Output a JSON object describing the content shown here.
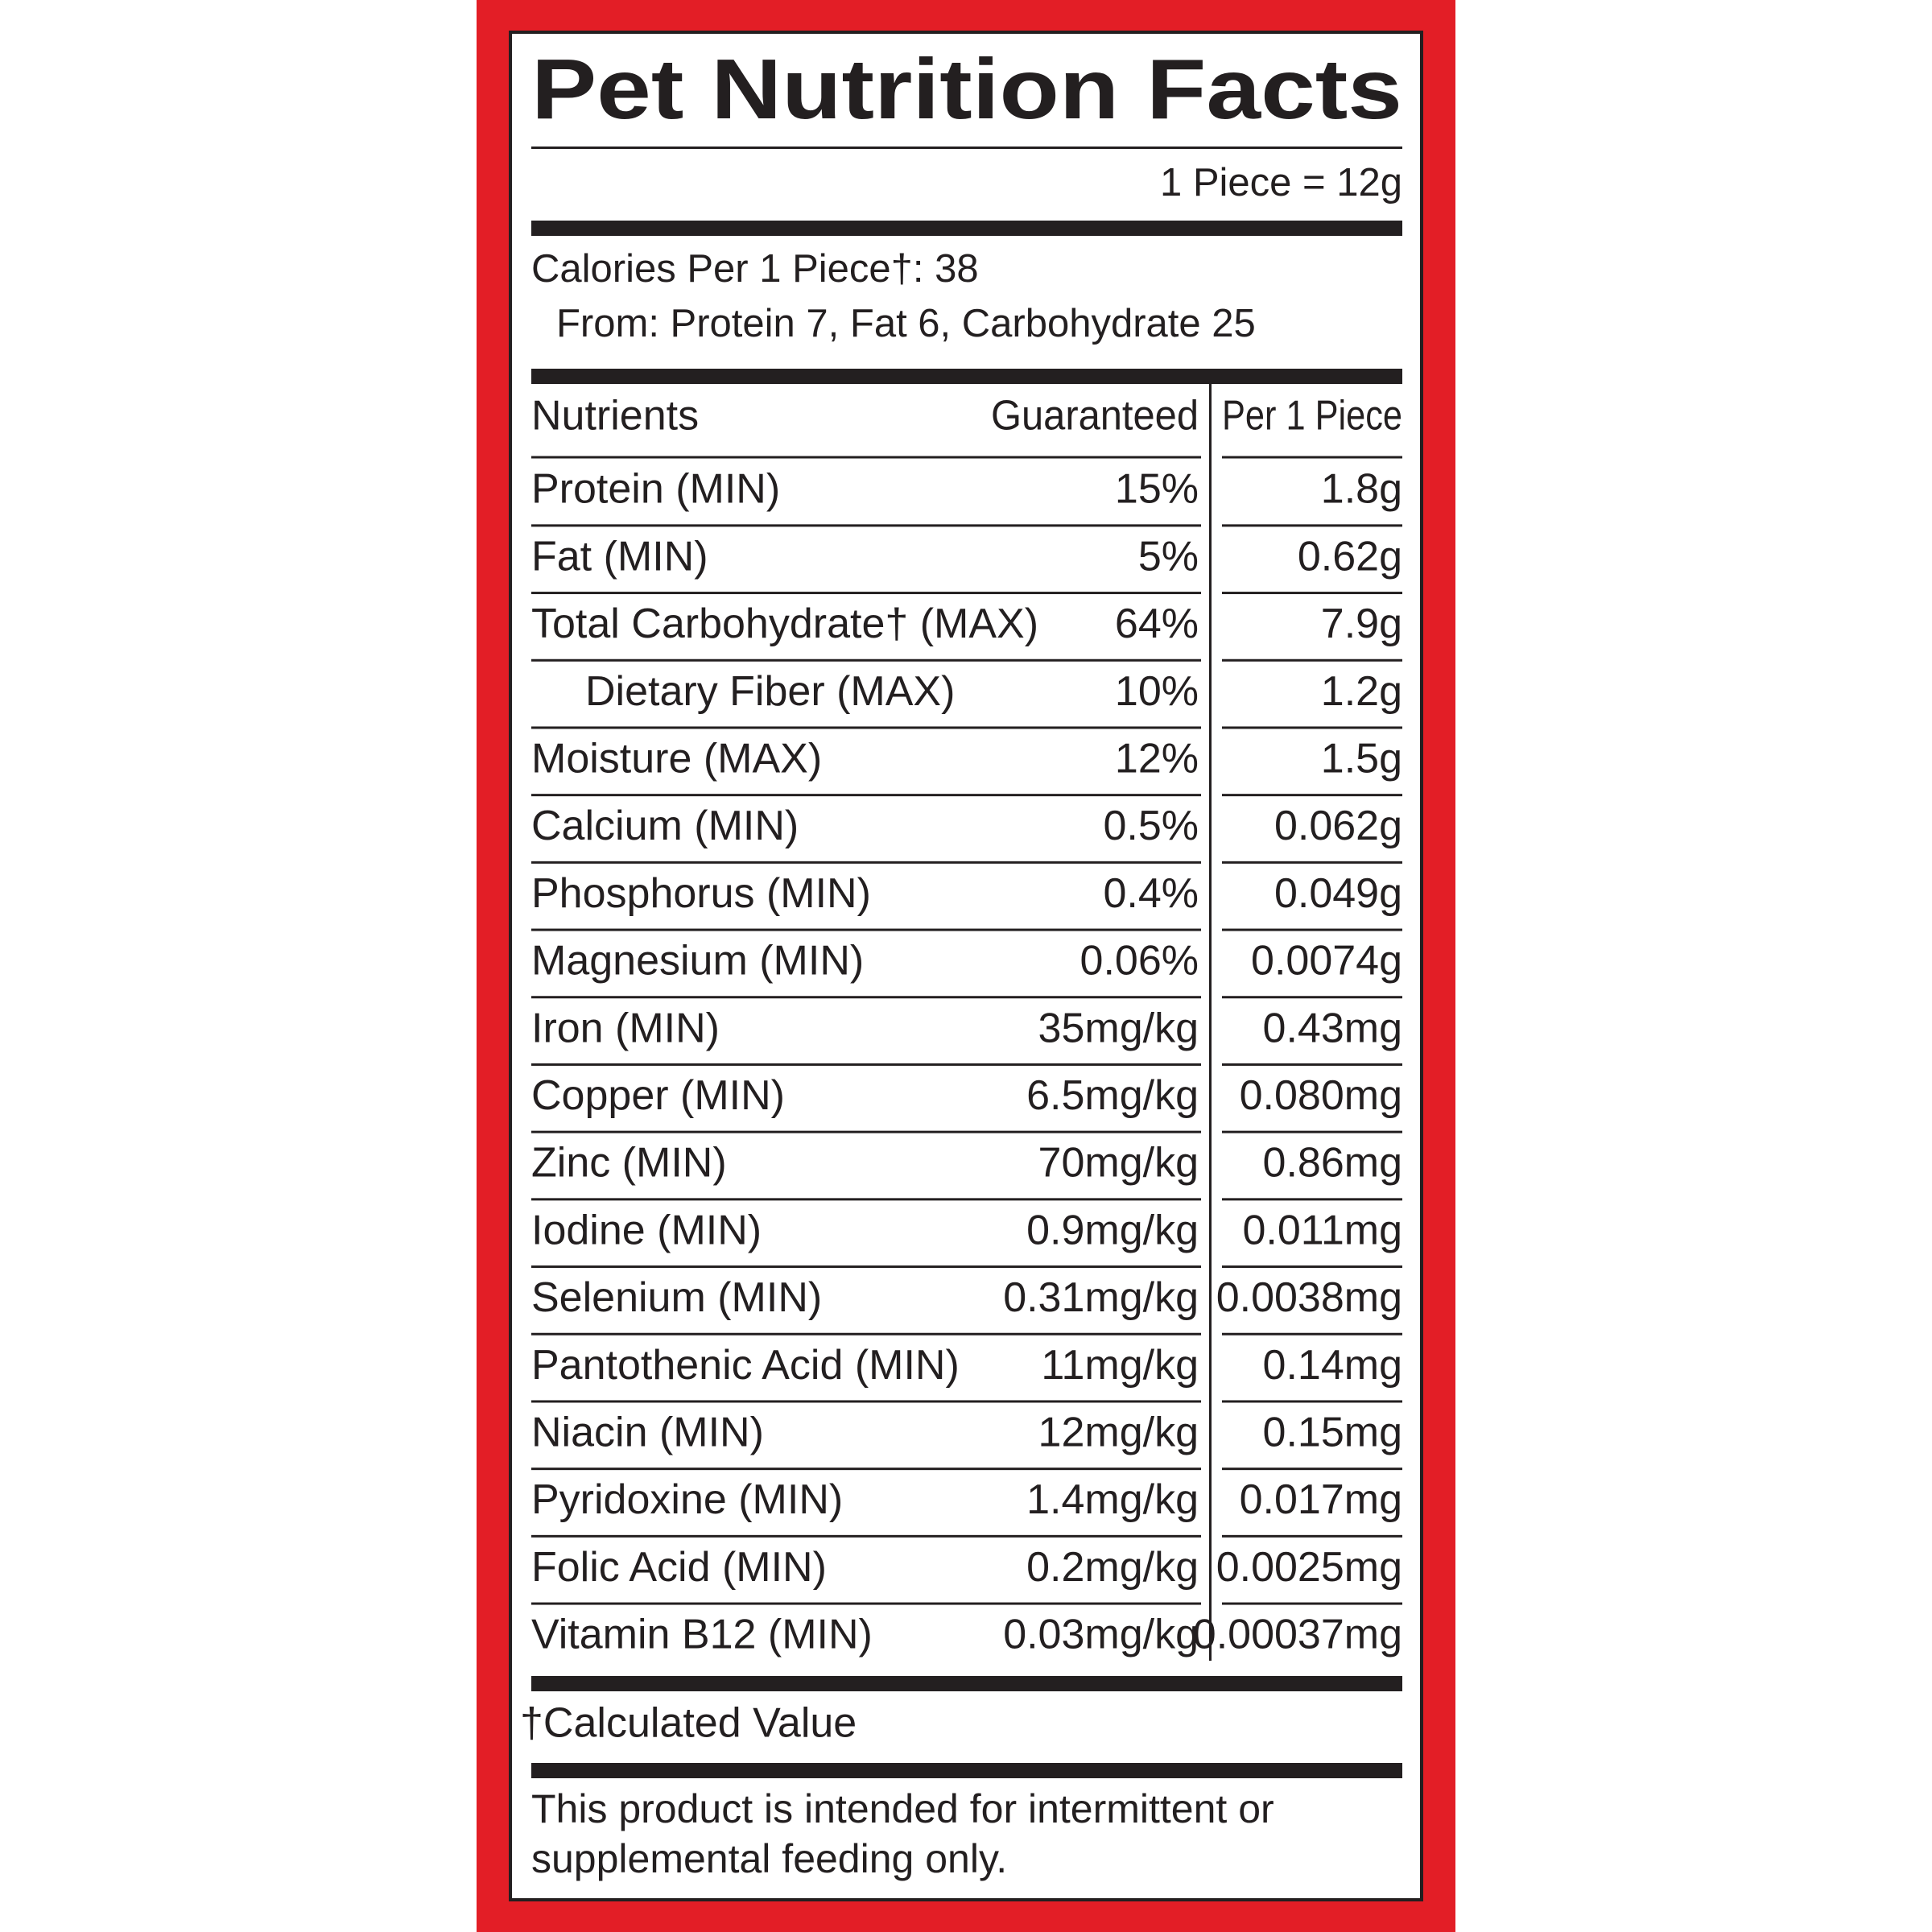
{
  "header": {
    "title": "Pet Nutrition Facts",
    "serving": "1 Piece = 12g"
  },
  "calories": {
    "line1": "Calories Per 1 Piece†: 38",
    "line2": "From: Protein 7, Fat 6, Carbohydrate 25"
  },
  "table": {
    "columns": [
      "Nutrients",
      "Guaranteed",
      "Per 1 Piece"
    ],
    "rows": [
      {
        "nutrient": "Protein (MIN)",
        "guaranteed": "15%",
        "per_piece": "1.8g"
      },
      {
        "nutrient": "Fat (MIN)",
        "guaranteed": "5%",
        "per_piece": "0.62g"
      },
      {
        "nutrient": "Total Carbohydrate† (MAX)",
        "guaranteed": "64%",
        "per_piece": "7.9g"
      },
      {
        "nutrient": "Dietary Fiber (MAX)",
        "guaranteed": "10%",
        "per_piece": "1.2g",
        "indent": true
      },
      {
        "nutrient": "Moisture (MAX)",
        "guaranteed": "12%",
        "per_piece": "1.5g"
      },
      {
        "nutrient": "Calcium (MIN)",
        "guaranteed": "0.5%",
        "per_piece": "0.062g"
      },
      {
        "nutrient": "Phosphorus (MIN)",
        "guaranteed": "0.4%",
        "per_piece": "0.049g"
      },
      {
        "nutrient": "Magnesium (MIN)",
        "guaranteed": "0.06%",
        "per_piece": "0.0074g"
      },
      {
        "nutrient": "Iron (MIN)",
        "guaranteed": "35mg/kg",
        "per_piece": "0.43mg"
      },
      {
        "nutrient": "Copper (MIN)",
        "guaranteed": "6.5mg/kg",
        "per_piece": "0.080mg"
      },
      {
        "nutrient": "Zinc (MIN)",
        "guaranteed": "70mg/kg",
        "per_piece": "0.86mg"
      },
      {
        "nutrient": "Iodine (MIN)",
        "guaranteed": "0.9mg/kg",
        "per_piece": "0.011mg"
      },
      {
        "nutrient": "Selenium (MIN)",
        "guaranteed": "0.31mg/kg",
        "per_piece": "0.0038mg"
      },
      {
        "nutrient": "Pantothenic Acid (MIN)",
        "guaranteed": "11mg/kg",
        "per_piece": "0.14mg"
      },
      {
        "nutrient": "Niacin (MIN)",
        "guaranteed": "12mg/kg",
        "per_piece": "0.15mg"
      },
      {
        "nutrient": "Pyridoxine (MIN)",
        "guaranteed": "1.4mg/kg",
        "per_piece": "0.017mg"
      },
      {
        "nutrient": "Folic Acid (MIN)",
        "guaranteed": "0.2mg/kg",
        "per_piece": "0.0025mg"
      },
      {
        "nutrient": "Vitamin B12 (MIN)",
        "guaranteed": "0.03mg/kg",
        "per_piece": "0.00037mg"
      }
    ]
  },
  "footnote": "†Calculated Value",
  "statement": {
    "line1": "This product is intended for intermittent or",
    "line2": "supplemental feeding only."
  }
}
